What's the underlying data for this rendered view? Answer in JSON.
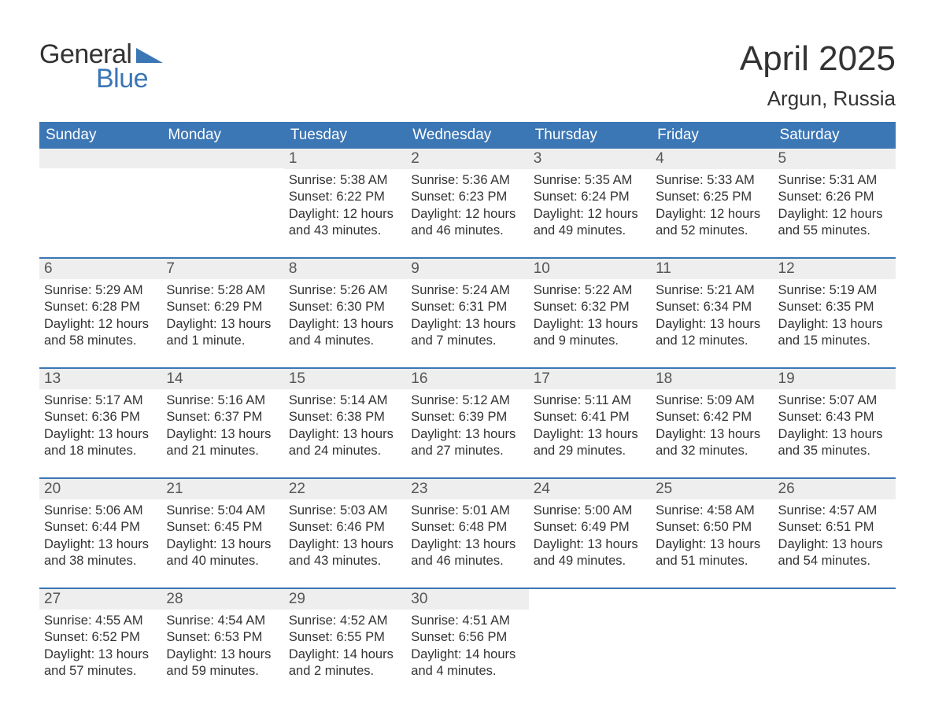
{
  "logo": {
    "text1": "General",
    "text2": "Blue",
    "triangle_color": "#3b76b5"
  },
  "title": "April 2025",
  "location": "Argun, Russia",
  "colors": {
    "header_bg": "#3b76b5",
    "header_text": "#ffffff",
    "daynum_bg": "#eeeeee",
    "daynum_text": "#555555",
    "body_text": "#333333",
    "week_border": "#3b76b5",
    "page_bg": "#ffffff"
  },
  "fonts": {
    "title_size": 44,
    "location_size": 26,
    "weekday_size": 19,
    "daynum_size": 19,
    "body_size": 16.5
  },
  "weekdays": [
    "Sunday",
    "Monday",
    "Tuesday",
    "Wednesday",
    "Thursday",
    "Friday",
    "Saturday"
  ],
  "weeks": [
    [
      {
        "n": "",
        "sr": "",
        "ss": "",
        "dl": ""
      },
      {
        "n": "",
        "sr": "",
        "ss": "",
        "dl": ""
      },
      {
        "n": "1",
        "sr": "5:38 AM",
        "ss": "6:22 PM",
        "dl": "12 hours and 43 minutes."
      },
      {
        "n": "2",
        "sr": "5:36 AM",
        "ss": "6:23 PM",
        "dl": "12 hours and 46 minutes."
      },
      {
        "n": "3",
        "sr": "5:35 AM",
        "ss": "6:24 PM",
        "dl": "12 hours and 49 minutes."
      },
      {
        "n": "4",
        "sr": "5:33 AM",
        "ss": "6:25 PM",
        "dl": "12 hours and 52 minutes."
      },
      {
        "n": "5",
        "sr": "5:31 AM",
        "ss": "6:26 PM",
        "dl": "12 hours and 55 minutes."
      }
    ],
    [
      {
        "n": "6",
        "sr": "5:29 AM",
        "ss": "6:28 PM",
        "dl": "12 hours and 58 minutes."
      },
      {
        "n": "7",
        "sr": "5:28 AM",
        "ss": "6:29 PM",
        "dl": "13 hours and 1 minute."
      },
      {
        "n": "8",
        "sr": "5:26 AM",
        "ss": "6:30 PM",
        "dl": "13 hours and 4 minutes."
      },
      {
        "n": "9",
        "sr": "5:24 AM",
        "ss": "6:31 PM",
        "dl": "13 hours and 7 minutes."
      },
      {
        "n": "10",
        "sr": "5:22 AM",
        "ss": "6:32 PM",
        "dl": "13 hours and 9 minutes."
      },
      {
        "n": "11",
        "sr": "5:21 AM",
        "ss": "6:34 PM",
        "dl": "13 hours and 12 minutes."
      },
      {
        "n": "12",
        "sr": "5:19 AM",
        "ss": "6:35 PM",
        "dl": "13 hours and 15 minutes."
      }
    ],
    [
      {
        "n": "13",
        "sr": "5:17 AM",
        "ss": "6:36 PM",
        "dl": "13 hours and 18 minutes."
      },
      {
        "n": "14",
        "sr": "5:16 AM",
        "ss": "6:37 PM",
        "dl": "13 hours and 21 minutes."
      },
      {
        "n": "15",
        "sr": "5:14 AM",
        "ss": "6:38 PM",
        "dl": "13 hours and 24 minutes."
      },
      {
        "n": "16",
        "sr": "5:12 AM",
        "ss": "6:39 PM",
        "dl": "13 hours and 27 minutes."
      },
      {
        "n": "17",
        "sr": "5:11 AM",
        "ss": "6:41 PM",
        "dl": "13 hours and 29 minutes."
      },
      {
        "n": "18",
        "sr": "5:09 AM",
        "ss": "6:42 PM",
        "dl": "13 hours and 32 minutes."
      },
      {
        "n": "19",
        "sr": "5:07 AM",
        "ss": "6:43 PM",
        "dl": "13 hours and 35 minutes."
      }
    ],
    [
      {
        "n": "20",
        "sr": "5:06 AM",
        "ss": "6:44 PM",
        "dl": "13 hours and 38 minutes."
      },
      {
        "n": "21",
        "sr": "5:04 AM",
        "ss": "6:45 PM",
        "dl": "13 hours and 40 minutes."
      },
      {
        "n": "22",
        "sr": "5:03 AM",
        "ss": "6:46 PM",
        "dl": "13 hours and 43 minutes."
      },
      {
        "n": "23",
        "sr": "5:01 AM",
        "ss": "6:48 PM",
        "dl": "13 hours and 46 minutes."
      },
      {
        "n": "24",
        "sr": "5:00 AM",
        "ss": "6:49 PM",
        "dl": "13 hours and 49 minutes."
      },
      {
        "n": "25",
        "sr": "4:58 AM",
        "ss": "6:50 PM",
        "dl": "13 hours and 51 minutes."
      },
      {
        "n": "26",
        "sr": "4:57 AM",
        "ss": "6:51 PM",
        "dl": "13 hours and 54 minutes."
      }
    ],
    [
      {
        "n": "27",
        "sr": "4:55 AM",
        "ss": "6:52 PM",
        "dl": "13 hours and 57 minutes."
      },
      {
        "n": "28",
        "sr": "4:54 AM",
        "ss": "6:53 PM",
        "dl": "13 hours and 59 minutes."
      },
      {
        "n": "29",
        "sr": "4:52 AM",
        "ss": "6:55 PM",
        "dl": "14 hours and 2 minutes."
      },
      {
        "n": "30",
        "sr": "4:51 AM",
        "ss": "6:56 PM",
        "dl": "14 hours and 4 minutes."
      },
      {
        "n": "",
        "sr": "",
        "ss": "",
        "dl": ""
      },
      {
        "n": "",
        "sr": "",
        "ss": "",
        "dl": ""
      },
      {
        "n": "",
        "sr": "",
        "ss": "",
        "dl": ""
      }
    ]
  ],
  "labels": {
    "sunrise": "Sunrise:",
    "sunset": "Sunset:",
    "daylight": "Daylight:"
  }
}
